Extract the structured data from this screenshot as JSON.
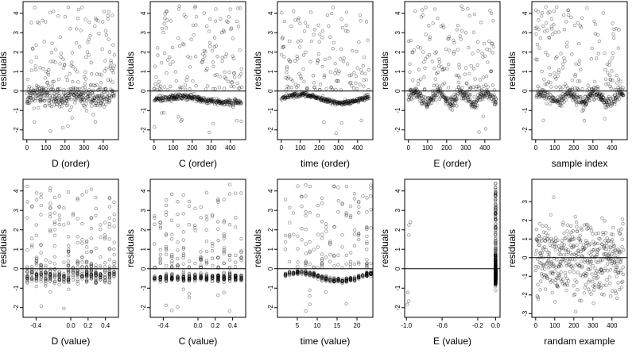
{
  "chart_data": [
    {
      "type": "scatter",
      "xlabel": "D (order)",
      "ylabel": "residuals",
      "xlim": [
        -20,
        480
      ],
      "ylim": [
        -2.5,
        4.6
      ],
      "xticks": [
        0,
        100,
        200,
        300,
        400
      ],
      "xtick_labels": [
        "0",
        "100",
        "200",
        "300",
        "400"
      ],
      "yticks": [
        -2,
        -1,
        0,
        1,
        2,
        3,
        4
      ],
      "ytick_labels": [
        "-2",
        "-1",
        "0",
        "1",
        "2",
        "3",
        "4"
      ],
      "hline": 0,
      "pattern": {
        "kind": "index_scatter",
        "n": 450,
        "xmin": 0,
        "xmax": 460,
        "base": -0.35,
        "amp": 0.12,
        "freq": 0.03,
        "spread": 0.22,
        "pos_frac": 0.33,
        "pos_max": 4.3,
        "seed": 11
      }
    },
    {
      "type": "scatter",
      "xlabel": "C (order)",
      "ylabel": "residuals",
      "xlim": [
        -20,
        480
      ],
      "ylim": [
        -2.5,
        4.6
      ],
      "xticks": [
        0,
        100,
        200,
        300,
        400
      ],
      "xtick_labels": [
        "0",
        "100",
        "200",
        "300",
        "400"
      ],
      "yticks": [
        -2,
        -1,
        0,
        1,
        2,
        3,
        4
      ],
      "ytick_labels": [
        "-2",
        "-1",
        "0",
        "1",
        "2",
        "3",
        "4"
      ],
      "hline": 0,
      "pattern": {
        "kind": "index_scatter",
        "n": 450,
        "xmin": 0,
        "xmax": 460,
        "base": -0.45,
        "amp": 0.15,
        "freq": 0.012,
        "spread": 0.08,
        "pos_frac": 0.3,
        "pos_max": 4.4,
        "seed": 23
      }
    },
    {
      "type": "scatter",
      "xlabel": "time (order)",
      "ylabel": "residuals",
      "xlim": [
        -20,
        480
      ],
      "ylim": [
        -2.5,
        4.6
      ],
      "xticks": [
        0,
        100,
        200,
        300,
        400
      ],
      "xtick_labels": [
        "0",
        "100",
        "200",
        "300",
        "400"
      ],
      "yticks": [
        -2,
        -1,
        0,
        1,
        2,
        3,
        4
      ],
      "ytick_labels": [
        "-2",
        "-1",
        "0",
        "1",
        "2",
        "3",
        "4"
      ],
      "hline": 0,
      "pattern": {
        "kind": "index_scatter",
        "n": 450,
        "xmin": 0,
        "xmax": 460,
        "base": -0.4,
        "amp": 0.22,
        "freq": 0.015,
        "spread": 0.06,
        "pos_frac": 0.32,
        "pos_max": 4.3,
        "seed": 37
      }
    },
    {
      "type": "scatter",
      "xlabel": "E (order)",
      "ylabel": "residuals",
      "xlim": [
        -20,
        480
      ],
      "ylim": [
        -2.5,
        4.6
      ],
      "xticks": [
        0,
        100,
        200,
        300,
        400
      ],
      "xtick_labels": [
        "0",
        "100",
        "200",
        "300",
        "400"
      ],
      "yticks": [
        -2,
        -1,
        0,
        1,
        2,
        3,
        4
      ],
      "ytick_labels": [
        "-2",
        "-1",
        "0",
        "1",
        "2",
        "3",
        "4"
      ],
      "hline": 0,
      "pattern": {
        "kind": "index_scatter",
        "n": 450,
        "xmin": 0,
        "xmax": 460,
        "base": -0.35,
        "amp": 0.25,
        "freq": 0.05,
        "spread": 0.15,
        "pos_frac": 0.33,
        "pos_max": 4.4,
        "seed": 41
      }
    },
    {
      "type": "scatter",
      "xlabel": "sample index",
      "ylabel": "residuals",
      "xlim": [
        -20,
        480
      ],
      "ylim": [
        -2.5,
        4.6
      ],
      "xticks": [
        0,
        100,
        200,
        300,
        400
      ],
      "xtick_labels": [
        "0",
        "100",
        "200",
        "300",
        "400"
      ],
      "yticks": [
        -2,
        -1,
        0,
        1,
        2,
        3,
        4
      ],
      "ytick_labels": [
        "-2",
        "-1",
        "0",
        "1",
        "2",
        "3",
        "4"
      ],
      "hline": 0,
      "pattern": {
        "kind": "index_scatter",
        "n": 450,
        "xmin": 0,
        "xmax": 460,
        "base": -0.35,
        "amp": 0.22,
        "freq": 0.045,
        "spread": 0.14,
        "pos_frac": 0.33,
        "pos_max": 4.4,
        "seed": 53
      }
    },
    {
      "type": "scatter",
      "xlabel": "D (value)",
      "ylabel": "residuals",
      "xlim": [
        -0.55,
        0.55
      ],
      "ylim": [
        -2.5,
        4.6
      ],
      "xticks": [
        -0.4,
        0,
        0.2,
        0.4
      ],
      "xtick_labels": [
        "-0.4",
        "0.0",
        "0.2",
        "0.4"
      ],
      "yticks": [
        -2,
        -1,
        0,
        1,
        2,
        3,
        4
      ],
      "ytick_labels": [
        "-2",
        "-1",
        "0",
        "1",
        "2",
        "3",
        "4"
      ],
      "hline": 0,
      "pattern": {
        "kind": "value_columns",
        "n": 450,
        "xmin": -0.5,
        "xmax": 0.5,
        "ncols": 20,
        "base": -0.35,
        "spread": 0.2,
        "pos_frac": 0.33,
        "pos_max": 4.3,
        "seed": 61
      }
    },
    {
      "type": "scatter",
      "xlabel": "C (value)",
      "ylabel": "residuals",
      "xlim": [
        -0.55,
        0.55
      ],
      "ylim": [
        -2.5,
        4.6
      ],
      "xticks": [
        -0.4,
        0,
        0.2,
        0.4
      ],
      "xtick_labels": [
        "-0.4",
        "0.0",
        "0.2",
        "0.4"
      ],
      "yticks": [
        -2,
        -1,
        0,
        1,
        2,
        3,
        4
      ],
      "ytick_labels": [
        "-2",
        "-1",
        "0",
        "1",
        "2",
        "3",
        "4"
      ],
      "hline": 0,
      "pattern": {
        "kind": "value_columns",
        "n": 450,
        "xmin": -0.5,
        "xmax": 0.5,
        "ncols": 16,
        "base": -0.45,
        "spread": 0.1,
        "pos_frac": 0.3,
        "pos_max": 4.4,
        "seed": 71
      }
    },
    {
      "type": "scatter",
      "xlabel": "time (value)",
      "ylabel": "residuals",
      "xlim": [
        0,
        24
      ],
      "ylim": [
        -2.5,
        4.6
      ],
      "xticks": [
        5,
        10,
        15,
        20
      ],
      "xtick_labels": [
        "5",
        "10",
        "15",
        "20"
      ],
      "yticks": [
        -2,
        -1,
        0,
        1,
        2,
        3,
        4
      ],
      "ytick_labels": [
        "-2",
        "-1",
        "0",
        "1",
        "2",
        "3",
        "4"
      ],
      "hline": 0,
      "pattern": {
        "kind": "value_columns",
        "n": 450,
        "xmin": 2,
        "xmax": 23.5,
        "ncols": 22,
        "base": -0.4,
        "amp": 0.22,
        "freq": 0.3,
        "spread": 0.06,
        "pos_frac": 0.32,
        "pos_max": 4.3,
        "seed": 83
      }
    },
    {
      "type": "scatter",
      "xlabel": "E (value)",
      "ylabel": "residuals",
      "xlim": [
        -1.02,
        0.05
      ],
      "ylim": [
        -2.5,
        4.6
      ],
      "xticks": [
        -1,
        -0.6,
        -0.2,
        0
      ],
      "xtick_labels": [
        "-1.0",
        "-0.6",
        "-0.2",
        "0.0"
      ],
      "yticks": [
        -2,
        -1,
        0,
        1,
        2,
        3,
        4
      ],
      "ytick_labels": [
        "-2",
        "-1",
        "0",
        "1",
        "2",
        "3",
        "4"
      ],
      "hline": 0,
      "pattern": {
        "kind": "e_value",
        "n": 450,
        "seed": 97
      }
    },
    {
      "type": "scatter",
      "xlabel": "randam example",
      "ylabel": "residuals",
      "xlim": [
        -20,
        480
      ],
      "ylim": [
        -3.2,
        4.2
      ],
      "xticks": [
        0,
        100,
        200,
        300,
        400
      ],
      "xtick_labels": [
        "0",
        "100",
        "200",
        "300",
        "400"
      ],
      "yticks": [
        -3,
        -2,
        -1,
        0,
        1,
        2,
        3
      ],
      "ytick_labels": [
        "-3",
        "-2",
        "-1",
        "0",
        "1",
        "2",
        "3"
      ],
      "hline": 0,
      "pattern": {
        "kind": "normal",
        "n": 450,
        "xmin": 0,
        "xmax": 460,
        "sd": 1.0,
        "seed": 101
      }
    }
  ],
  "style": {
    "point_color": "#000000",
    "point_opacity": 0.4,
    "line_color": "#000000"
  }
}
